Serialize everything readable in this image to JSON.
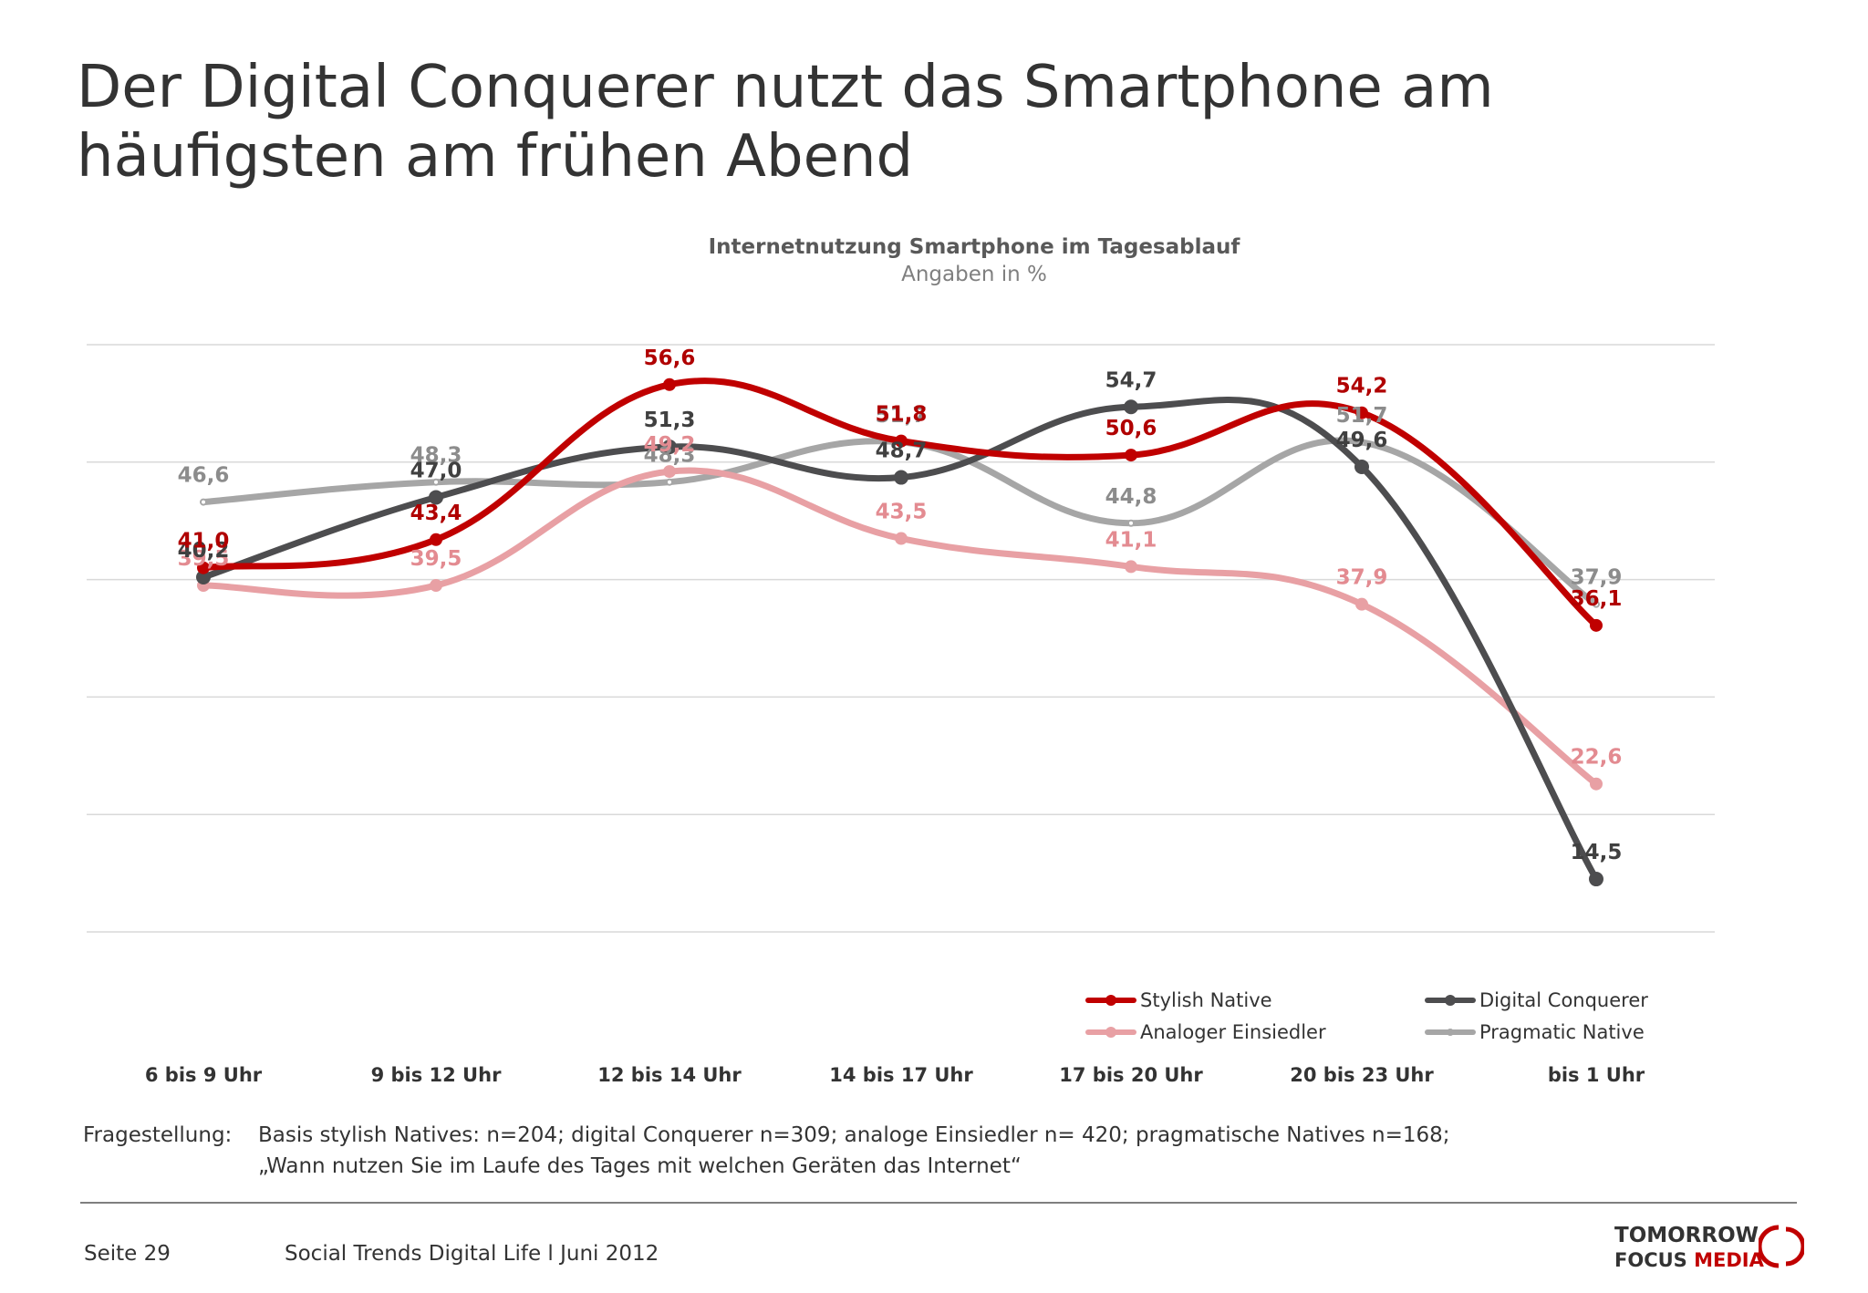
{
  "slide": {
    "title_line1": "Der Digital Conquerer nutzt das Smartphone am",
    "title_line2": "häufigsten am frühen Abend"
  },
  "chart_data": {
    "type": "line",
    "title": "Internetnutzung Smartphone im Tagesablauf",
    "subtitle": "Angaben in %",
    "categories": [
      "6 bis 9 Uhr",
      "9 bis 12 Uhr",
      "12 bis 14 Uhr",
      "14 bis 17 Uhr",
      "17 bis 20 Uhr",
      "20 bis 23 Uhr",
      "bis 1 Uhr"
    ],
    "ylim": [
      10,
      60
    ],
    "grid_values": [
      10,
      20,
      30,
      40,
      50,
      60
    ],
    "grid": true,
    "legend_position": "bottom-right",
    "series": [
      {
        "name": "Pragmatic Native",
        "color": "#a6a6a6",
        "label_color": "#8c8c8c",
        "marker": "small",
        "values": [
          46.6,
          48.3,
          48.3,
          51.7,
          44.8,
          51.7,
          37.9
        ],
        "labels": [
          "46,6",
          "48,3",
          "48,3",
          "51,7",
          "44,8",
          "51,7",
          "37,9"
        ]
      },
      {
        "name": "Analoger Einsiedler",
        "color": "#e8a0a4",
        "label_color": "#e38b91",
        "marker": "medium",
        "values": [
          39.5,
          39.5,
          49.2,
          43.5,
          41.1,
          37.9,
          22.6
        ],
        "labels": [
          "39,5",
          "39,5",
          "49,2",
          "43,5",
          "41,1",
          "37,9",
          "22,6"
        ]
      },
      {
        "name": "Digital Conquerer",
        "color": "#4d4d4f",
        "label_color": "#404040",
        "marker": "large",
        "values": [
          40.2,
          47.0,
          51.3,
          48.7,
          54.7,
          49.6,
          14.5
        ],
        "labels": [
          "40,2",
          "47,0",
          "51,3",
          "48,7",
          "54,7",
          "49,6",
          "14,5"
        ]
      },
      {
        "name": "Stylish Native",
        "color": "#c00000",
        "label_color": "#b00000",
        "marker": "medium",
        "values": [
          41.0,
          43.4,
          56.6,
          51.8,
          50.6,
          54.2,
          36.1
        ],
        "labels": [
          "41,0",
          "43,4",
          "56,6",
          "51,8",
          "50,6",
          "54,2",
          "36,1"
        ]
      }
    ]
  },
  "legend": {
    "stylish": "Stylish Native",
    "digital": "Digital Conquerer",
    "analog": "Analoger Einsiedler",
    "pragmatic": "Pragmatic Native"
  },
  "footnote": {
    "label": "Fragestellung:",
    "line1": "Basis stylish Natives: n=204; digital Conquerer n=309; analoge Einsiedler n= 420; pragmatische Natives n=168;",
    "line2": "„Wann nutzen Sie im Laufe des Tages mit welchen Geräten das Internet“"
  },
  "footer": {
    "page": "Seite 29",
    "source": "Social Trends Digital Life l Juni 2012",
    "logo_top": "TOMORROW",
    "logo_bottom_1": "FOCUS",
    "logo_bottom_2": "MEDIA"
  },
  "colors": {
    "stylish": "#c00000",
    "digital": "#4d4d4f",
    "analog": "#e8a0a4",
    "pragmatic": "#a6a6a6"
  }
}
